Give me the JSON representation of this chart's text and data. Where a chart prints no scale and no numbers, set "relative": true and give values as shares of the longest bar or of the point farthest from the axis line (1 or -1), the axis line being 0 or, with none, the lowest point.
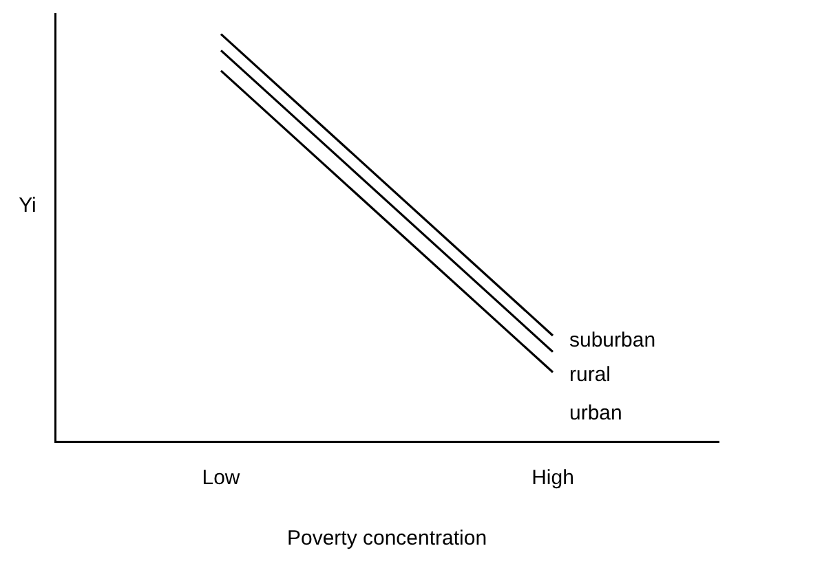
{
  "chart_data": {
    "type": "line",
    "relative": true,
    "xlabel": "Poverty concentration",
    "ylabel": "Yi",
    "categories": [
      "Low",
      "High"
    ],
    "grid": false,
    "legend": false,
    "marker": "none",
    "line_style": "solid",
    "series": [
      {
        "name": "suburban",
        "color": "#000000",
        "values": [
          1,
          0.26
        ]
      },
      {
        "name": "rural",
        "color": "#000000",
        "values": [
          0.96,
          0.22
        ]
      },
      {
        "name": "urban",
        "color": "#000000",
        "values": [
          0.91,
          0.17
        ]
      }
    ]
  }
}
